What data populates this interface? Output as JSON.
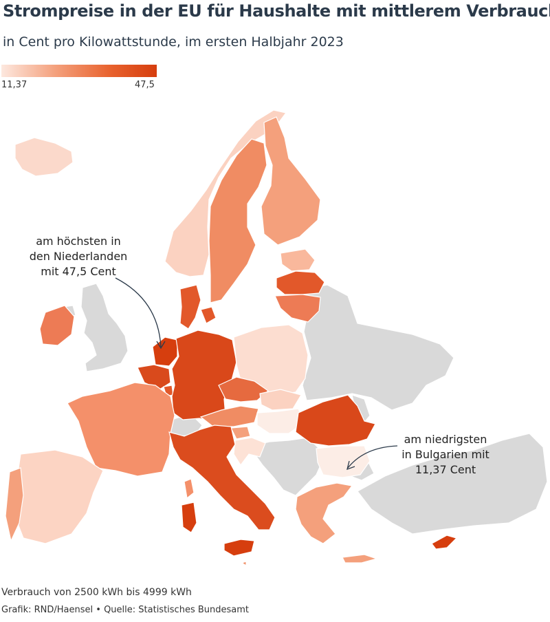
{
  "header": {
    "title": "Strompreise in der EU für Haushalte mit mittlerem Verbrauch",
    "subtitle": "in Cent pro Kilowattstunde, im ersten Halbjahr 2023"
  },
  "legend": {
    "min_label": "11,37",
    "max_label": "47,5",
    "min_color": "#fde8df",
    "max_color": "#d63e0e"
  },
  "colors": {
    "no_data": "#d9d9d9",
    "highest": "#d63e0e",
    "high": "#e2582a",
    "mid_high": "#ed7b55",
    "mid": "#f4a07c",
    "low": "#f9c7b2",
    "lowest": "#fde8df"
  },
  "annotations": {
    "highest": [
      "am höchsten in",
      "den Niederlanden",
      "mit 47,5 Cent"
    ],
    "lowest": [
      "am niedrigsten",
      "in Bulgarien mit",
      "11,37 Cent"
    ]
  },
  "footer": {
    "note": "Verbrauch von 2500 kWh bis 4999 kWh",
    "credit": "Grafik: RND/Haensel",
    "separator": "•",
    "source": "Quelle: Statistisches Bundesamt"
  },
  "map_values": {
    "highest_country": "Niederlande",
    "highest_value": 47.5,
    "lowest_country": "Bulgarien",
    "lowest_value": 11.37,
    "unit": "Cent/kWh"
  }
}
